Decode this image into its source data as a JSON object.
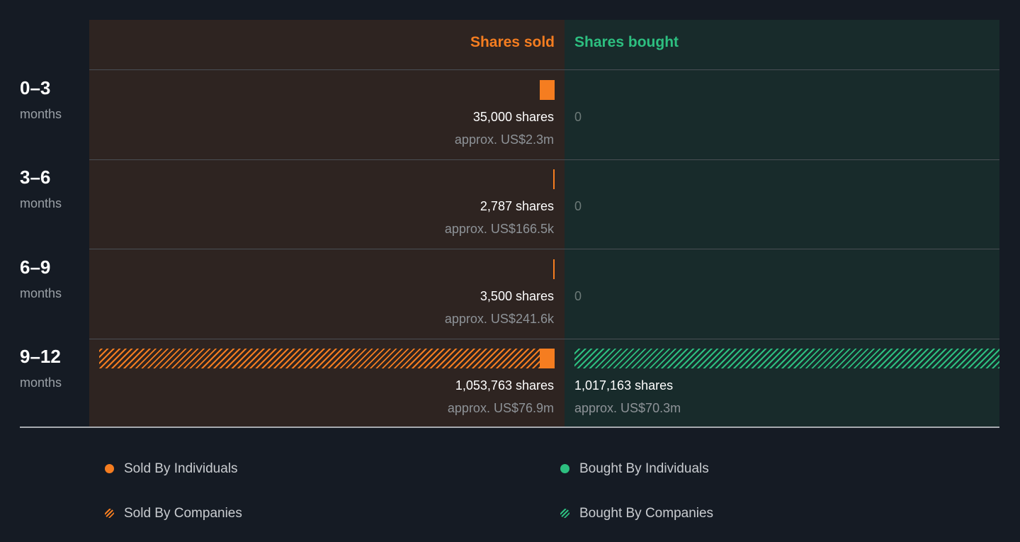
{
  "chart_data": {
    "type": "bar",
    "headers": {
      "sold": "Shares sold",
      "bought": "Shares bought"
    },
    "rows": [
      {
        "period": "0–3",
        "unit": "months",
        "sold": {
          "individuals": 35000,
          "companies": 0,
          "shares_label": "35,000 shares",
          "approx": "approx. US$2.3m"
        },
        "bought": {
          "individuals": 0,
          "companies": 0,
          "zero_label": "0"
        }
      },
      {
        "period": "3–6",
        "unit": "months",
        "sold": {
          "individuals": 2787,
          "companies": 0,
          "shares_label": "2,787 shares",
          "approx": "approx. US$166.5k"
        },
        "bought": {
          "individuals": 0,
          "companies": 0,
          "zero_label": "0"
        }
      },
      {
        "period": "6–9",
        "unit": "months",
        "sold": {
          "individuals": 3500,
          "companies": 0,
          "shares_label": "3,500 shares",
          "approx": "approx. US$241.6k"
        },
        "bought": {
          "individuals": 0,
          "companies": 0,
          "zero_label": "0"
        }
      },
      {
        "period": "9–12",
        "unit": "months",
        "sold": {
          "individuals": 35000,
          "companies": 1018763,
          "shares_label": "1,053,763 shares",
          "approx": "approx. US$76.9m"
        },
        "bought": {
          "individuals": 0,
          "companies": 1017163,
          "shares_label": "1,017,163 shares",
          "approx": "approx. US$70.3m"
        }
      }
    ],
    "legend": [
      {
        "label": "Sold By Individuals",
        "style": "solid",
        "color": "#f57d20"
      },
      {
        "label": "Bought By Individuals",
        "style": "solid",
        "color": "#2dbf80"
      },
      {
        "label": "Sold By Companies",
        "style": "hatched",
        "color": "#f57d20"
      },
      {
        "label": "Bought By Companies",
        "style": "hatched",
        "color": "#2dbf80"
      }
    ],
    "max_value": 1053763
  }
}
